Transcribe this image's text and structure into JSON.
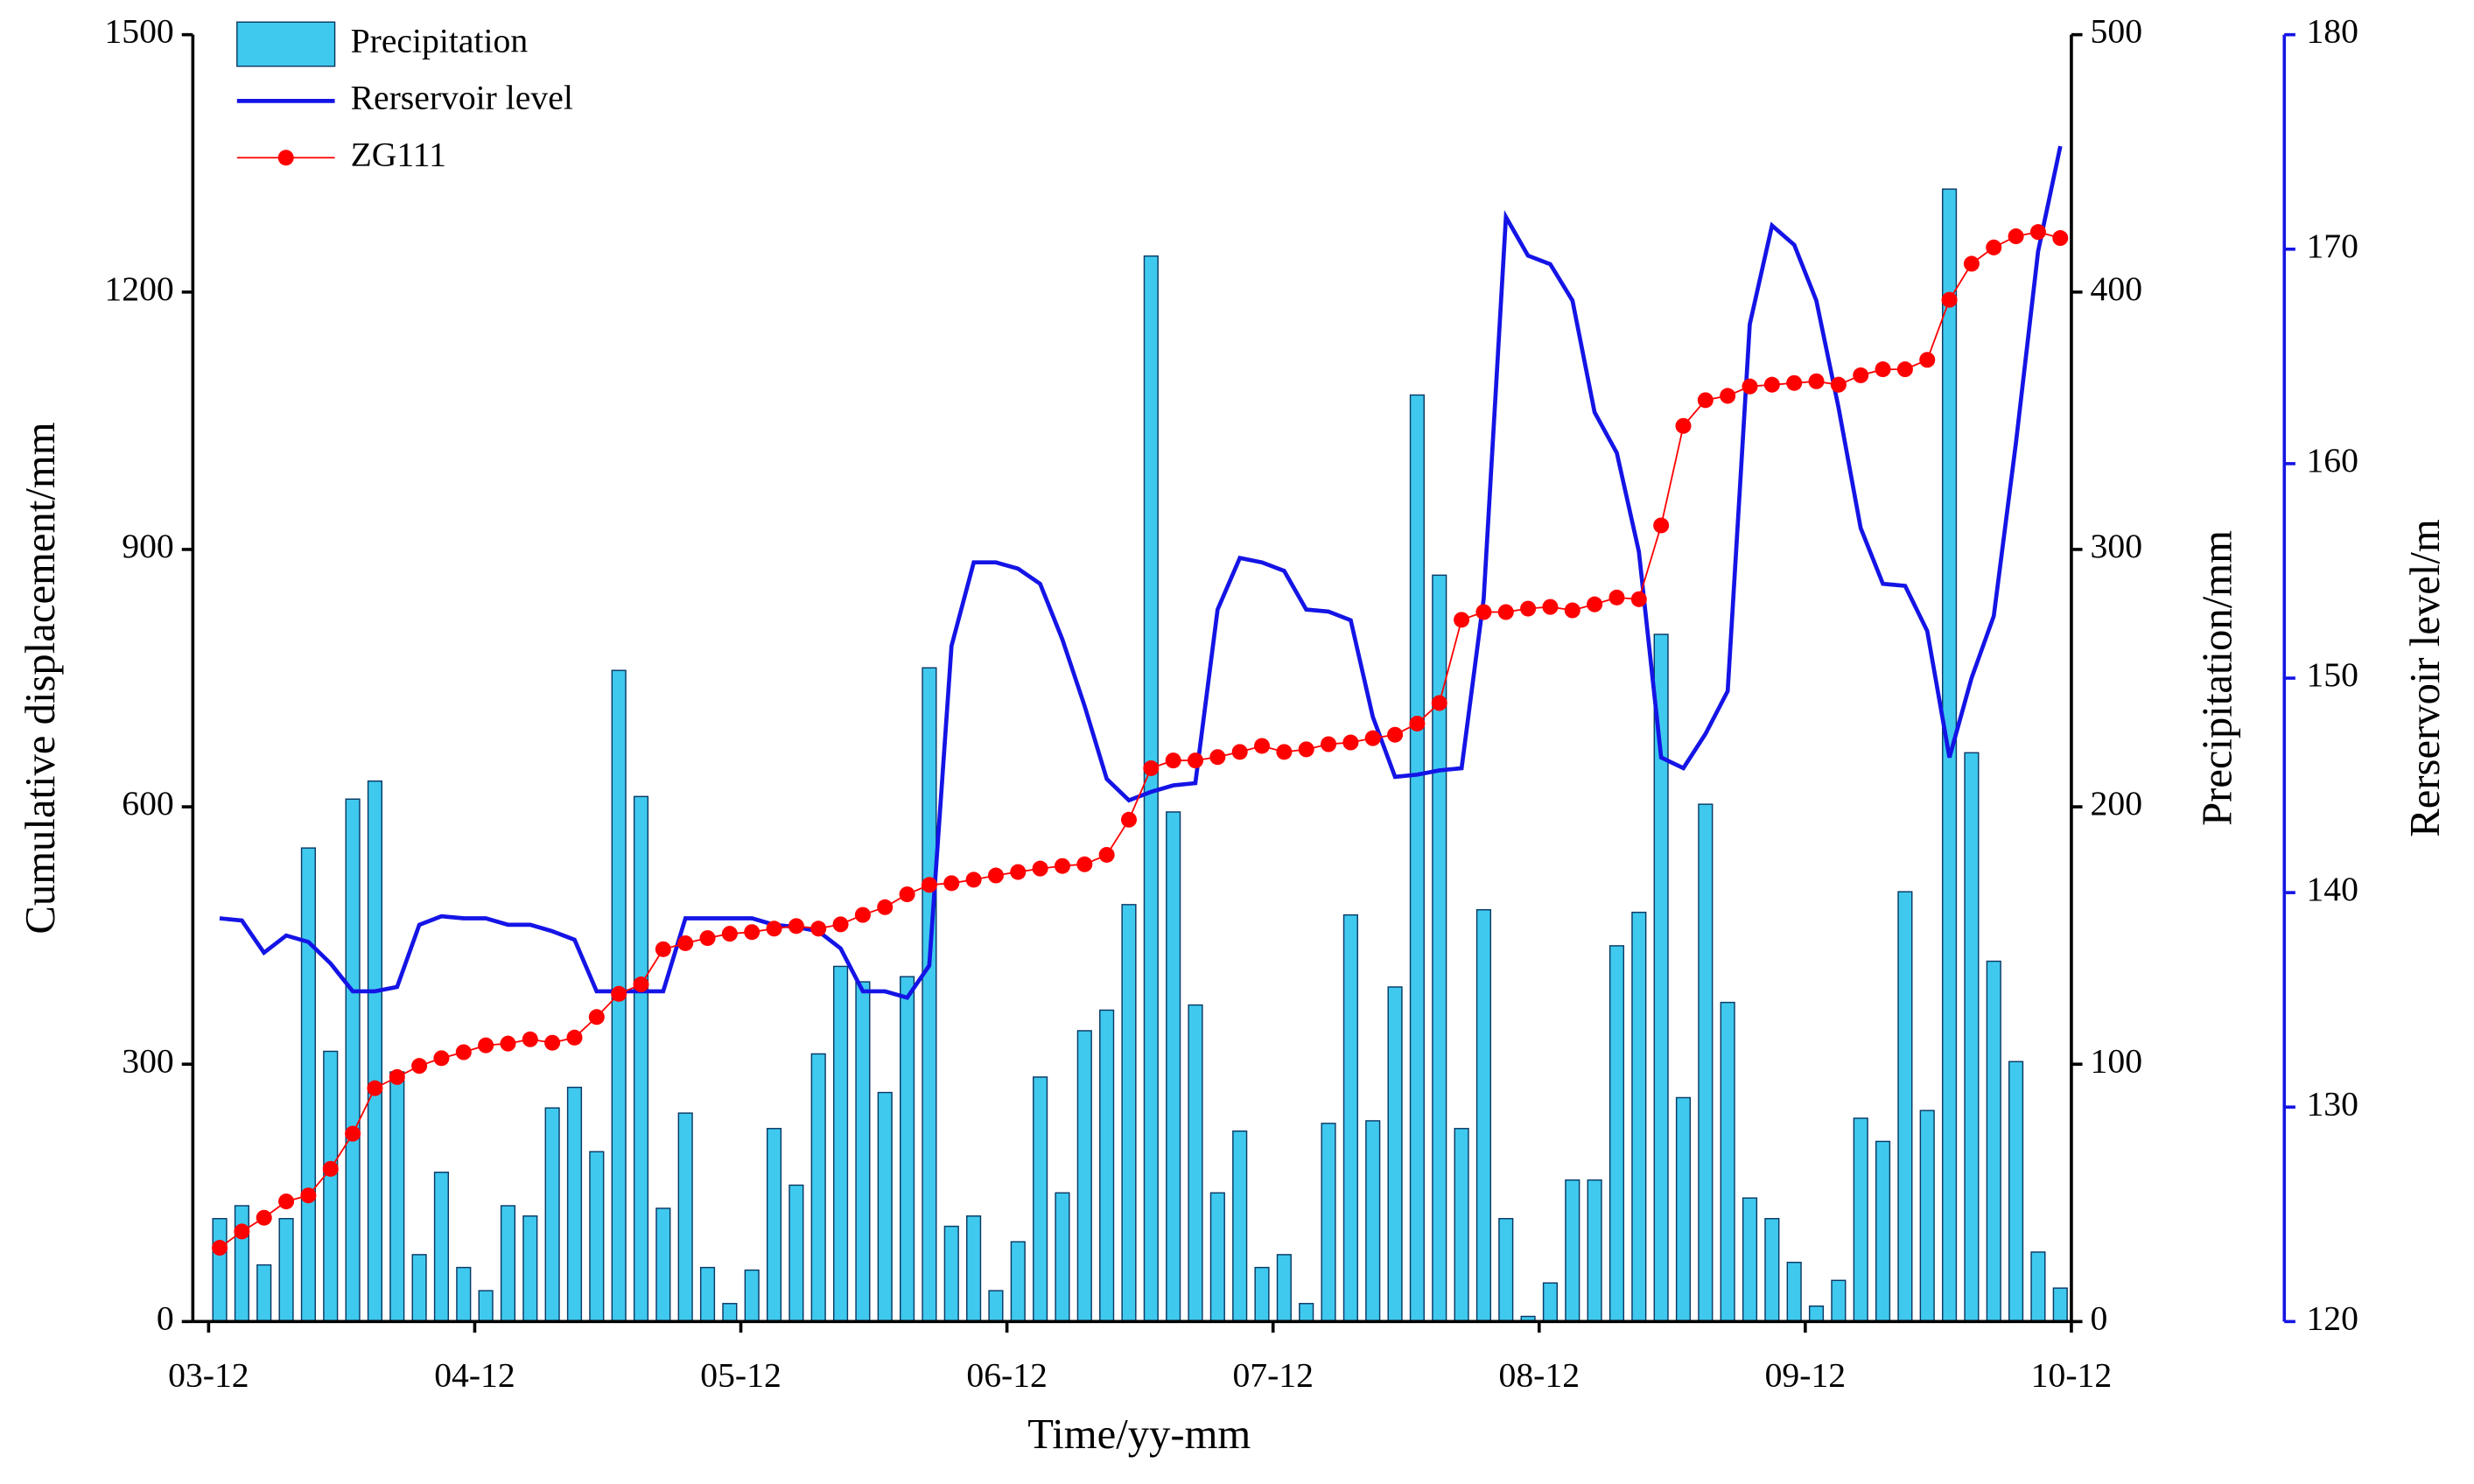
{
  "chart_data": {
    "type": "combo",
    "x_label": "Time/yy-mm",
    "y_label": "Cumulative displacement/mm",
    "y2_label": "Precipitation/mm",
    "y3_label": "Rerservoir level/m",
    "xlim": [
      0,
      84
    ],
    "xticks": [
      {
        "value": 0,
        "label": "03-12"
      },
      {
        "value": 12,
        "label": "04-12"
      },
      {
        "value": 24,
        "label": "05-12"
      },
      {
        "value": 36,
        "label": "06-12"
      },
      {
        "value": 48,
        "label": "07-12"
      },
      {
        "value": 60,
        "label": "08-12"
      },
      {
        "value": 72,
        "label": "09-12"
      },
      {
        "value": 84,
        "label": "10-12"
      }
    ],
    "ylim": [
      0,
      1500
    ],
    "yticks": [
      0,
      300,
      600,
      900,
      1200,
      1500
    ],
    "y2lim": [
      0,
      500
    ],
    "y2ticks": [
      0,
      100,
      200,
      300,
      400,
      500
    ],
    "y3lim": [
      120,
      180
    ],
    "y3ticks": [
      120,
      130,
      140,
      150,
      160,
      170,
      180
    ],
    "legend": "top-left",
    "series": [
      {
        "name": "Precipitation",
        "type": "bar",
        "axis": "y2",
        "color": "#3fc9ee",
        "edge": "#0a3a66",
        "values": [
          40,
          45,
          22,
          40,
          184,
          105,
          203,
          210,
          97,
          26,
          58,
          21,
          12,
          45,
          41,
          83,
          91,
          66,
          253,
          204,
          44,
          81,
          21,
          7,
          20,
          75,
          53,
          104,
          138,
          132,
          89,
          134,
          254,
          37,
          41,
          12,
          31,
          95,
          50,
          113,
          121,
          162,
          414,
          198,
          123,
          50,
          74,
          21,
          26,
          7,
          77,
          158,
          78,
          130,
          360,
          290,
          75,
          160,
          40,
          2,
          15,
          55,
          55,
          146,
          159,
          267,
          87,
          201,
          124,
          48,
          40,
          23,
          6,
          16,
          79,
          70,
          167,
          82,
          440,
          221,
          140,
          101,
          27,
          13
        ]
      },
      {
        "name": "Rerservoir level",
        "type": "line",
        "axis": "y3",
        "color": "#1414e6",
        "values": [
          138.8,
          138.7,
          137.2,
          138.0,
          137.7,
          136.7,
          135.4,
          135.4,
          135.6,
          138.5,
          138.9,
          138.8,
          138.8,
          138.5,
          138.5,
          138.2,
          137.8,
          135.4,
          135.4,
          135.4,
          135.4,
          138.8,
          138.8,
          138.8,
          138.8,
          138.5,
          138.4,
          138.2,
          137.4,
          135.4,
          135.4,
          135.1,
          136.6,
          151.5,
          155.4,
          155.4,
          155.1,
          154.4,
          151.8,
          148.7,
          145.3,
          144.3,
          144.7,
          145.0,
          145.1,
          153.2,
          155.6,
          155.4,
          155.0,
          153.2,
          153.1,
          152.7,
          148.2,
          145.4,
          145.5,
          145.7,
          145.8,
          153.7,
          171.5,
          169.7,
          169.3,
          167.6,
          162.4,
          160.5,
          155.9,
          146.3,
          145.8,
          147.4,
          149.4,
          166.5,
          171.1,
          170.2,
          167.6,
          162.6,
          157.0,
          154.4,
          154.3,
          152.2,
          146.3,
          150.0,
          152.9,
          161.0,
          169.9,
          174.8
        ]
      },
      {
        "name": "ZG111",
        "type": "line",
        "marker": "circle",
        "axis": "y",
        "color": "#ff0000",
        "values": [
          86,
          105,
          121,
          140,
          147,
          178,
          219,
          272,
          285,
          298,
          307,
          314,
          322,
          324,
          329,
          325,
          331,
          355,
          382,
          393,
          434,
          441,
          447,
          452,
          454,
          458,
          461,
          458,
          463,
          474,
          483,
          498,
          509,
          511,
          515,
          520,
          524,
          528,
          531,
          533,
          544,
          585,
          645,
          654,
          654,
          658,
          664,
          671,
          664,
          667,
          673,
          675,
          680,
          684,
          697,
          721,
          818,
          827,
          827,
          831,
          833,
          829,
          836,
          844,
          842,
          928,
          1044,
          1074,
          1079,
          1090,
          1092,
          1094,
          1096,
          1092,
          1103,
          1110,
          1110,
          1121,
          1191,
          1233,
          1252,
          1265,
          1270,
          1263
        ]
      }
    ]
  }
}
